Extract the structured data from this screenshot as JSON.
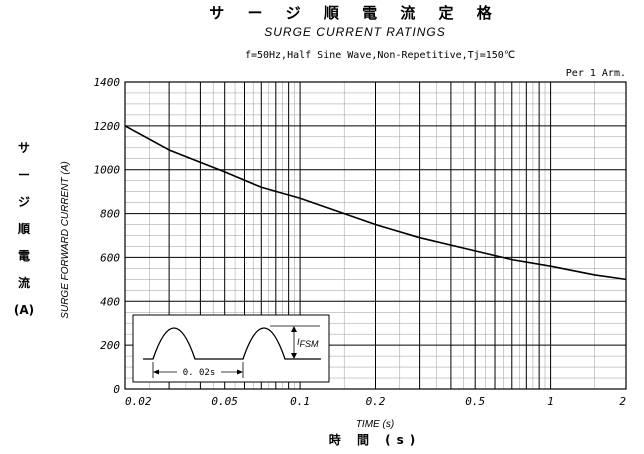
{
  "header": {
    "title_jp": "サ ー ジ 順 電 流 定 格",
    "title_en": "SURGE CURRENT RATINGS",
    "conditions": "f=50Hz,Half Sine Wave,Non-Repetitive,Tj=150℃",
    "per_arm": "Per 1 Arm."
  },
  "chart_data": {
    "type": "line",
    "title": "SURGE CURRENT RATINGS",
    "xlabel": "TIME (s)",
    "xlabel_jp": "時 間 (s)",
    "ylabel": "SURGE FORWARD CURRENT (A)",
    "ylabel_jp": [
      "サ",
      "ー",
      "ジ",
      "順",
      "電",
      "流",
      "(A)"
    ],
    "x_scale": "log",
    "xlim": [
      0.02,
      2
    ],
    "ylim": [
      0,
      1400
    ],
    "grid": true,
    "x_ticks": [
      0.02,
      0.05,
      0.1,
      0.2,
      0.5,
      1,
      2
    ],
    "x_tick_labels": [
      "0.02",
      "0.05",
      "0.1",
      "0.2",
      "0.5",
      "1",
      "2"
    ],
    "y_ticks": [
      0,
      200,
      400,
      600,
      800,
      1000,
      1200,
      1400
    ],
    "y_tick_labels": [
      "0",
      "200",
      "400",
      "600",
      "800",
      "1000",
      "1200",
      "1400"
    ],
    "series": [
      {
        "x": [
          0.02,
          0.03,
          0.05,
          0.07,
          0.1,
          0.15,
          0.2,
          0.3,
          0.5,
          0.7,
          1,
          1.5,
          2
        ],
        "y": [
          1200,
          1090,
          990,
          920,
          870,
          800,
          750,
          690,
          630,
          590,
          560,
          520,
          500
        ]
      }
    ]
  },
  "inset": {
    "label_period": "0. 02s",
    "label_ifsm": "FSM"
  }
}
